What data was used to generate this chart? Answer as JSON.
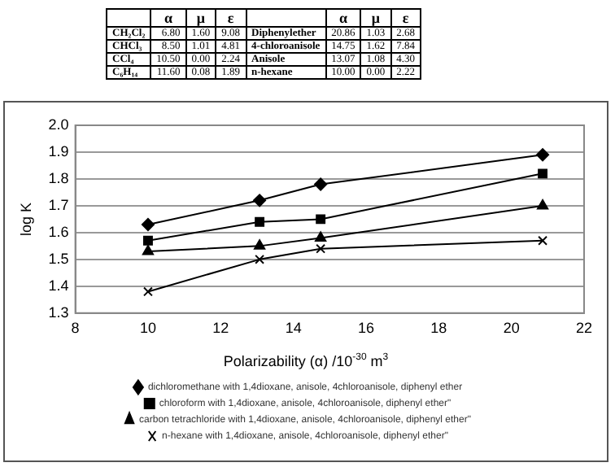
{
  "chart_data": [
    {
      "type": "other",
      "annotations": [
        "α",
        "μ",
        "ε",
        "α",
        "μ",
        "ε",
        "CH₂Cl₂",
        "6.80",
        "1.60",
        "9.08",
        "Diphenylether",
        "20.86",
        "1.03",
        "2.68",
        "CHCl₃",
        "8.50",
        "1.01",
        "4.81",
        "4-chloroanisole",
        "14.75",
        "1.62",
        "7.84",
        "CCl₄",
        "10.50",
        "0.00",
        "2.24",
        "Anisole",
        "13.07",
        "1.08",
        "4.30",
        "C₆H₁₄",
        "11.60",
        "0.08",
        "1.89",
        "n-hexane",
        "10.00",
        "0.00",
        "2.22"
      ]
    },
    {
      "type": "line",
      "xlabel": "Polarizability (α) /10$^{-30}$  m$^{3}$",
      "ylabel": "log K",
      "x": [
        10.0,
        13.07,
        14.75,
        20.86
      ],
      "xlim": [
        8,
        22
      ],
      "xticks": [
        8,
        10,
        12,
        14,
        16,
        18,
        20,
        22
      ],
      "ylim": [
        1.3,
        2.0
      ],
      "yticks": [
        1.3,
        1.4,
        1.5,
        1.6,
        1.7,
        1.8,
        1.9,
        {
          "value": 2,
          "label": "2.0"
        }
      ],
      "grid": "y",
      "legend": "bottom",
      "series": [
        {
          "name": "dichloromethane with 1,4dioxane, anisole, 4chloroanisole, diphenyl ether",
          "color": "#000000",
          "marker": "diamond",
          "values": [
            1.63,
            1.72,
            1.78,
            1.89
          ]
        },
        {
          "name": "chloroform with 1,4dioxane, anisole, 4chloroanisole, diphenyl ether\"",
          "color": "#000000",
          "marker": "square",
          "values": [
            1.57,
            1.64,
            1.65,
            1.82
          ]
        },
        {
          "name": "carbon tetrachloride with 1,4dioxane, anisole, 4chloroanisole, diphenyl ether\"",
          "color": "#000000",
          "marker": "triangle",
          "values": [
            1.53,
            1.55,
            1.58,
            1.7
          ]
        },
        {
          "name": "n-hexane with 1,4dioxane, anisole, 4chloroanisole, diphenyl ether\"",
          "color": "#000000",
          "marker": "cross",
          "values": [
            1.38,
            1.5,
            1.54,
            1.57
          ]
        }
      ]
    }
  ]
}
